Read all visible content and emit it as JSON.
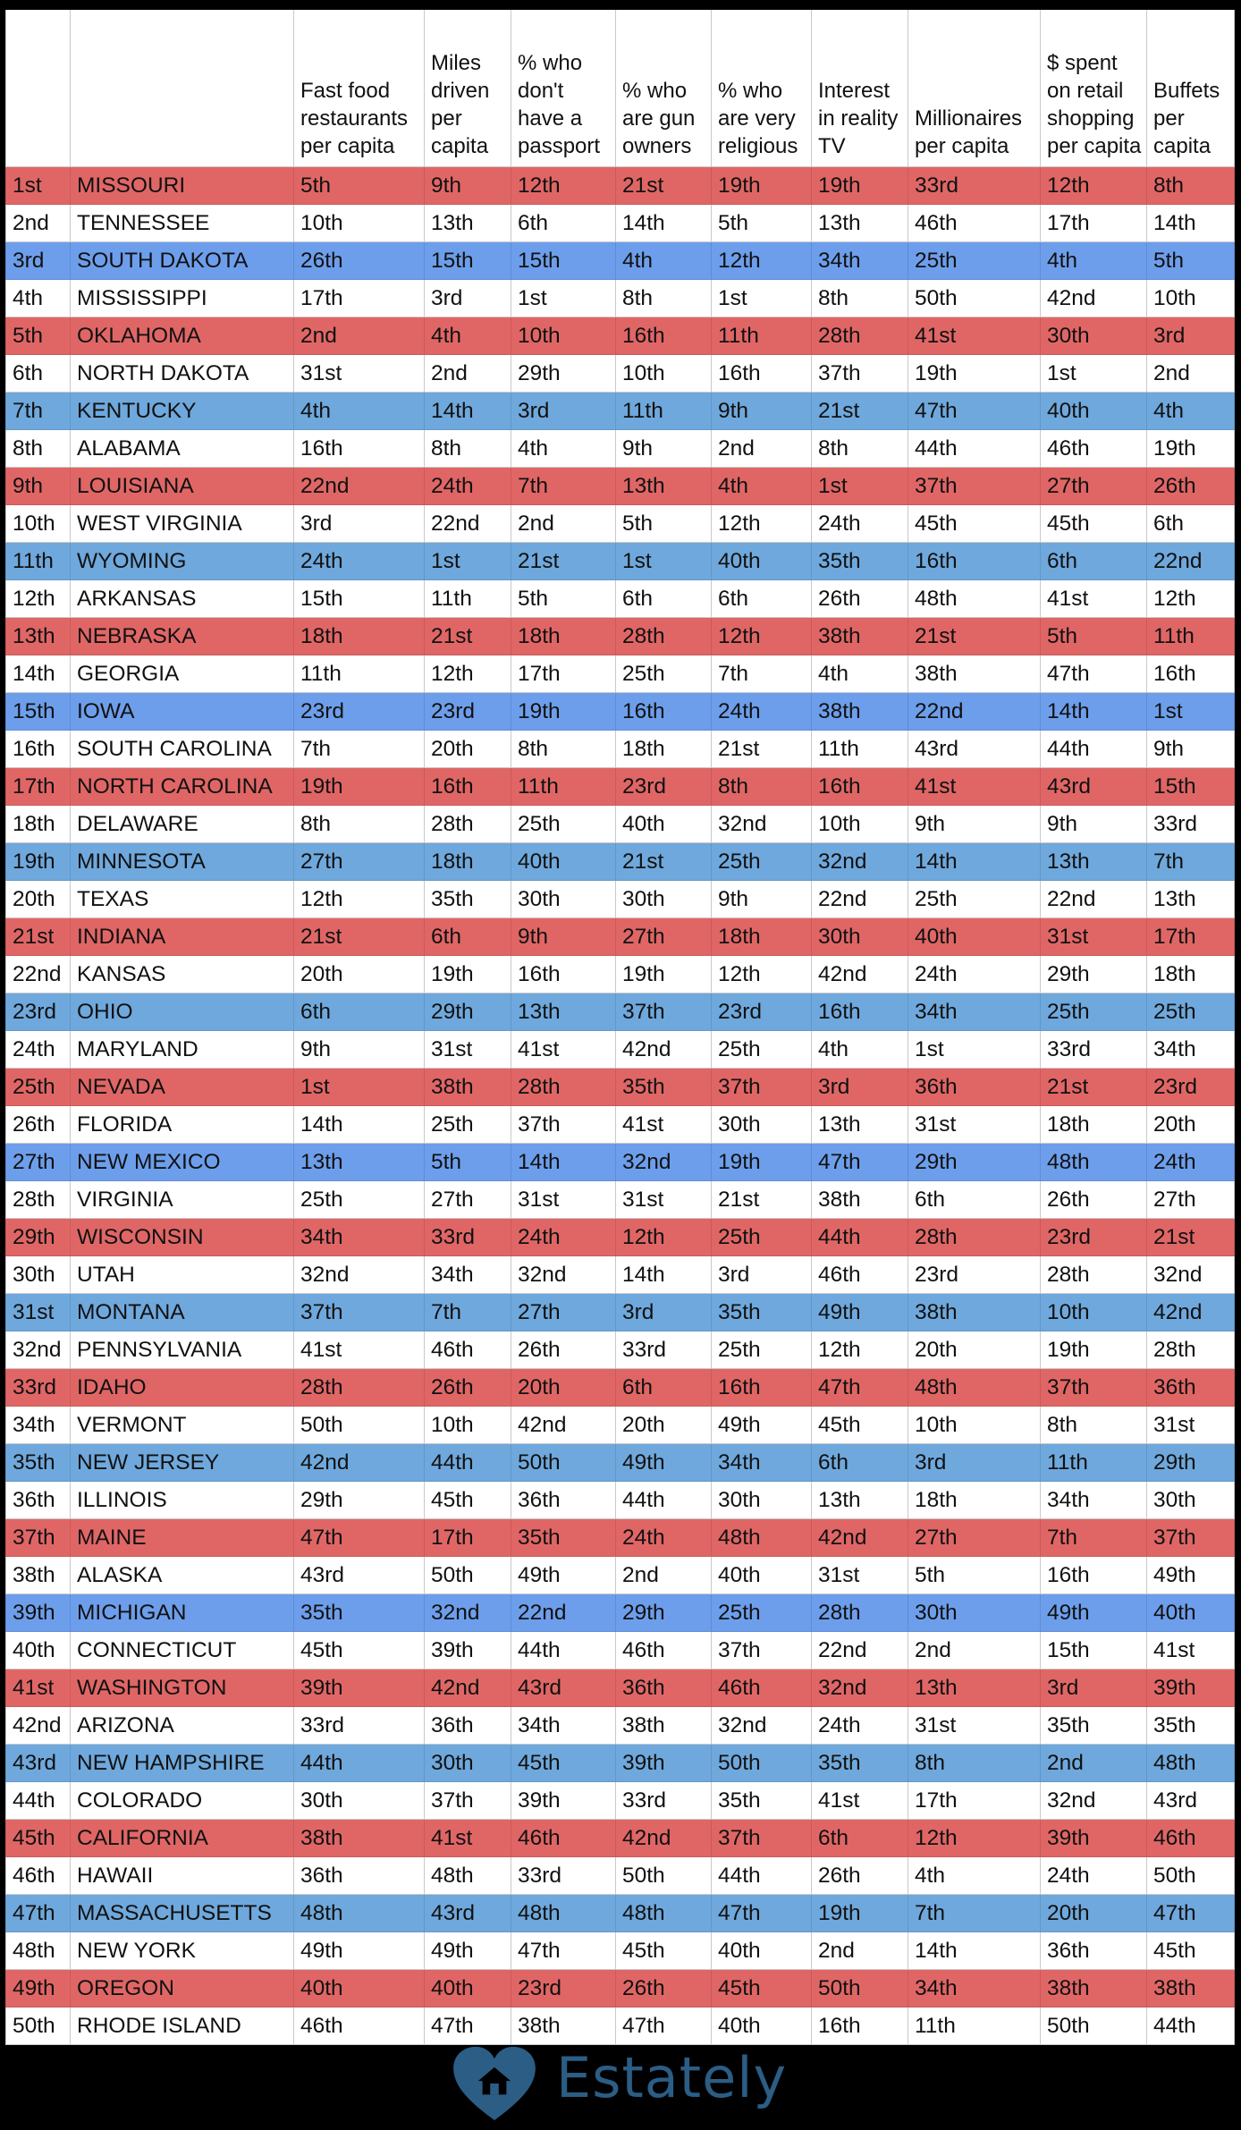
{
  "chart_data": {
    "type": "table",
    "columns": [
      "",
      "",
      "Fast food restaurants per capita",
      "Miles driven per capita",
      "% who don't have a passport",
      "% who are gun owners",
      "% who are very religious",
      "Interest in reality TV",
      "Millionaires per capita",
      "$ spent on retail shopping per capita",
      "Buffets per capita"
    ],
    "row_colors": {
      "red": "#e06666",
      "blue_a": "#6d9eeb",
      "blue_b": "#6fa8dc",
      "white": "#ffffff"
    },
    "rows": [
      {
        "color": "red",
        "cells": [
          "1st",
          "MISSOURI",
          "5th",
          "9th",
          "12th",
          "21st",
          "19th",
          "19th",
          "33rd",
          "12th",
          "8th"
        ]
      },
      {
        "color": "white",
        "cells": [
          "2nd",
          "TENNESSEE",
          "10th",
          "13th",
          "6th",
          "14th",
          "5th",
          "13th",
          "46th",
          "17th",
          "14th"
        ]
      },
      {
        "color": "blue1",
        "cells": [
          "3rd",
          "SOUTH DAKOTA",
          "26th",
          "15th",
          "15th",
          "4th",
          "12th",
          "34th",
          "25th",
          "4th",
          "5th"
        ]
      },
      {
        "color": "white",
        "cells": [
          "4th",
          "MISSISSIPPI",
          "17th",
          "3rd",
          "1st",
          "8th",
          "1st",
          "8th",
          "50th",
          "42nd",
          "10th"
        ]
      },
      {
        "color": "red",
        "cells": [
          "5th",
          "OKLAHOMA",
          "2nd",
          "4th",
          "10th",
          "16th",
          "11th",
          "28th",
          "41st",
          "30th",
          "3rd"
        ]
      },
      {
        "color": "white",
        "cells": [
          "6th",
          "NORTH DAKOTA",
          "31st",
          "2nd",
          "29th",
          "10th",
          "16th",
          "37th",
          "19th",
          "1st",
          "2nd"
        ]
      },
      {
        "color": "blue2",
        "cells": [
          "7th",
          "KENTUCKY",
          "4th",
          "14th",
          "3rd",
          "11th",
          "9th",
          "21st",
          "47th",
          "40th",
          "4th"
        ]
      },
      {
        "color": "white",
        "cells": [
          "8th",
          "ALABAMA",
          "16th",
          "8th",
          "4th",
          "9th",
          "2nd",
          "8th",
          "44th",
          "46th",
          "19th"
        ]
      },
      {
        "color": "red",
        "cells": [
          "9th",
          "LOUISIANA",
          "22nd",
          "24th",
          "7th",
          "13th",
          "4th",
          "1st",
          "37th",
          "27th",
          "26th"
        ]
      },
      {
        "color": "white",
        "cells": [
          "10th",
          "WEST VIRGINIA",
          "3rd",
          "22nd",
          "2nd",
          "5th",
          "12th",
          "24th",
          "45th",
          "45th",
          "6th"
        ]
      },
      {
        "color": "blue2",
        "cells": [
          "11th",
          "WYOMING",
          "24th",
          "1st",
          "21st",
          "1st",
          "40th",
          "35th",
          "16th",
          "6th",
          "22nd"
        ]
      },
      {
        "color": "white",
        "cells": [
          "12th",
          "ARKANSAS",
          "15th",
          "11th",
          "5th",
          "6th",
          "6th",
          "26th",
          "48th",
          "41st",
          "12th"
        ]
      },
      {
        "color": "red",
        "cells": [
          "13th",
          "NEBRASKA",
          "18th",
          "21st",
          "18th",
          "28th",
          "12th",
          "38th",
          "21st",
          "5th",
          "11th"
        ]
      },
      {
        "color": "white",
        "cells": [
          "14th",
          "GEORGIA",
          "11th",
          "12th",
          "17th",
          "25th",
          "7th",
          "4th",
          "38th",
          "47th",
          "16th"
        ]
      },
      {
        "color": "blue1",
        "cells": [
          "15th",
          "IOWA",
          "23rd",
          "23rd",
          "19th",
          "16th",
          "24th",
          "38th",
          "22nd",
          "14th",
          "1st"
        ]
      },
      {
        "color": "white",
        "cells": [
          "16th",
          "SOUTH CAROLINA",
          "7th",
          "20th",
          "8th",
          "18th",
          "21st",
          "11th",
          "43rd",
          "44th",
          "9th"
        ]
      },
      {
        "color": "red",
        "cells": [
          "17th",
          "NORTH CAROLINA",
          "19th",
          "16th",
          "11th",
          "23rd",
          "8th",
          "16th",
          "41st",
          "43rd",
          "15th"
        ]
      },
      {
        "color": "white",
        "cells": [
          "18th",
          "DELAWARE",
          "8th",
          "28th",
          "25th",
          "40th",
          "32nd",
          "10th",
          "9th",
          "9th",
          "33rd"
        ]
      },
      {
        "color": "blue2",
        "cells": [
          "19th",
          "MINNESOTA",
          "27th",
          "18th",
          "40th",
          "21st",
          "25th",
          "32nd",
          "14th",
          "13th",
          "7th"
        ]
      },
      {
        "color": "white",
        "cells": [
          "20th",
          "TEXAS",
          "12th",
          "35th",
          "30th",
          "30th",
          "9th",
          "22nd",
          "25th",
          "22nd",
          "13th"
        ]
      },
      {
        "color": "red",
        "cells": [
          "21st",
          "INDIANA",
          "21st",
          "6th",
          "9th",
          "27th",
          "18th",
          "30th",
          "40th",
          "31st",
          "17th"
        ]
      },
      {
        "color": "white",
        "cells": [
          "22nd",
          "KANSAS",
          "20th",
          "19th",
          "16th",
          "19th",
          "12th",
          "42nd",
          "24th",
          "29th",
          "18th"
        ]
      },
      {
        "color": "blue2",
        "cells": [
          "23rd",
          "OHIO",
          "6th",
          "29th",
          "13th",
          "37th",
          "23rd",
          "16th",
          "34th",
          "25th",
          "25th"
        ]
      },
      {
        "color": "white",
        "cells": [
          "24th",
          "MARYLAND",
          "9th",
          "31st",
          "41st",
          "42nd",
          "25th",
          "4th",
          "1st",
          "33rd",
          "34th"
        ]
      },
      {
        "color": "red",
        "cells": [
          "25th",
          "NEVADA",
          "1st",
          "38th",
          "28th",
          "35th",
          "37th",
          "3rd",
          "36th",
          "21st",
          "23rd"
        ]
      },
      {
        "color": "white",
        "cells": [
          "26th",
          "FLORIDA",
          "14th",
          "25th",
          "37th",
          "41st",
          "30th",
          "13th",
          "31st",
          "18th",
          "20th"
        ]
      },
      {
        "color": "blue1",
        "cells": [
          "27th",
          "NEW MEXICO",
          "13th",
          "5th",
          "14th",
          "32nd",
          "19th",
          "47th",
          "29th",
          "48th",
          "24th"
        ]
      },
      {
        "color": "white",
        "cells": [
          "28th",
          "VIRGINIA",
          "25th",
          "27th",
          "31st",
          "31st",
          "21st",
          "38th",
          "6th",
          "26th",
          "27th"
        ]
      },
      {
        "color": "red",
        "cells": [
          "29th",
          "WISCONSIN",
          "34th",
          "33rd",
          "24th",
          "12th",
          "25th",
          "44th",
          "28th",
          "23rd",
          "21st"
        ]
      },
      {
        "color": "white",
        "cells": [
          "30th",
          "UTAH",
          "32nd",
          "34th",
          "32nd",
          "14th",
          "3rd",
          "46th",
          "23rd",
          "28th",
          "32nd"
        ]
      },
      {
        "color": "blue2",
        "cells": [
          "31st",
          "MONTANA",
          "37th",
          "7th",
          "27th",
          "3rd",
          "35th",
          "49th",
          "38th",
          "10th",
          "42nd"
        ]
      },
      {
        "color": "white",
        "cells": [
          "32nd",
          "PENNSYLVANIA",
          "41st",
          "46th",
          "26th",
          "33rd",
          "25th",
          "12th",
          "20th",
          "19th",
          "28th"
        ]
      },
      {
        "color": "red",
        "cells": [
          "33rd",
          "IDAHO",
          "28th",
          "26th",
          "20th",
          "6th",
          "16th",
          "47th",
          "48th",
          "37th",
          "36th"
        ]
      },
      {
        "color": "white",
        "cells": [
          "34th",
          "VERMONT",
          "50th",
          "10th",
          "42nd",
          "20th",
          "49th",
          "45th",
          "10th",
          "8th",
          "31st"
        ]
      },
      {
        "color": "blue2",
        "cells": [
          "35th",
          "NEW JERSEY",
          "42nd",
          "44th",
          "50th",
          "49th",
          "34th",
          "6th",
          "3rd",
          "11th",
          "29th"
        ]
      },
      {
        "color": "white",
        "cells": [
          "36th",
          "ILLINOIS",
          "29th",
          "45th",
          "36th",
          "44th",
          "30th",
          "13th",
          "18th",
          "34th",
          "30th"
        ]
      },
      {
        "color": "red",
        "cells": [
          "37th",
          "MAINE",
          "47th",
          "17th",
          "35th",
          "24th",
          "48th",
          "42nd",
          "27th",
          "7th",
          "37th"
        ]
      },
      {
        "color": "white",
        "cells": [
          "38th",
          "ALASKA",
          "43rd",
          "50th",
          "49th",
          "2nd",
          "40th",
          "31st",
          "5th",
          "16th",
          "49th"
        ]
      },
      {
        "color": "blue1",
        "cells": [
          "39th",
          "MICHIGAN",
          "35th",
          "32nd",
          "22nd",
          "29th",
          "25th",
          "28th",
          "30th",
          "49th",
          "40th"
        ]
      },
      {
        "color": "white",
        "cells": [
          "40th",
          "CONNECTICUT",
          "45th",
          "39th",
          "44th",
          "46th",
          "37th",
          "22nd",
          "2nd",
          "15th",
          "41st"
        ]
      },
      {
        "color": "red",
        "cells": [
          "41st",
          "WASHINGTON",
          "39th",
          "42nd",
          "43rd",
          "36th",
          "46th",
          "32nd",
          "13th",
          "3rd",
          "39th"
        ]
      },
      {
        "color": "white",
        "cells": [
          "42nd",
          "ARIZONA",
          "33rd",
          "36th",
          "34th",
          "38th",
          "32nd",
          "24th",
          "31st",
          "35th",
          "35th"
        ]
      },
      {
        "color": "blue2",
        "cells": [
          "43rd",
          "NEW HAMPSHIRE",
          "44th",
          "30th",
          "45th",
          "39th",
          "50th",
          "35th",
          "8th",
          "2nd",
          "48th"
        ]
      },
      {
        "color": "white",
        "cells": [
          "44th",
          "COLORADO",
          "30th",
          "37th",
          "39th",
          "33rd",
          "35th",
          "41st",
          "17th",
          "32nd",
          "43rd"
        ]
      },
      {
        "color": "red",
        "cells": [
          "45th",
          "CALIFORNIA",
          "38th",
          "41st",
          "46th",
          "42nd",
          "37th",
          "6th",
          "12th",
          "39th",
          "46th"
        ]
      },
      {
        "color": "white",
        "cells": [
          "46th",
          "HAWAII",
          "36th",
          "48th",
          "33rd",
          "50th",
          "44th",
          "26th",
          "4th",
          "24th",
          "50th"
        ]
      },
      {
        "color": "blue2",
        "cells": [
          "47th",
          "MASSACHUSETTS",
          "48th",
          "43rd",
          "48th",
          "48th",
          "47th",
          "19th",
          "7th",
          "20th",
          "47th"
        ]
      },
      {
        "color": "white",
        "cells": [
          "48th",
          "NEW YORK",
          "49th",
          "49th",
          "47th",
          "45th",
          "40th",
          "2nd",
          "14th",
          "36th",
          "45th"
        ]
      },
      {
        "color": "red",
        "cells": [
          "49th",
          "OREGON",
          "40th",
          "40th",
          "23rd",
          "26th",
          "45th",
          "50th",
          "34th",
          "38th",
          "38th"
        ]
      },
      {
        "color": "white",
        "cells": [
          "50th",
          "RHODE ISLAND",
          "46th",
          "47th",
          "38th",
          "47th",
          "40th",
          "16th",
          "11th",
          "50th",
          "44th"
        ]
      }
    ]
  },
  "footer": {
    "logo_text": "Estately",
    "logo_icon": "heart-house-icon",
    "logo_color": "#2b5d85"
  }
}
